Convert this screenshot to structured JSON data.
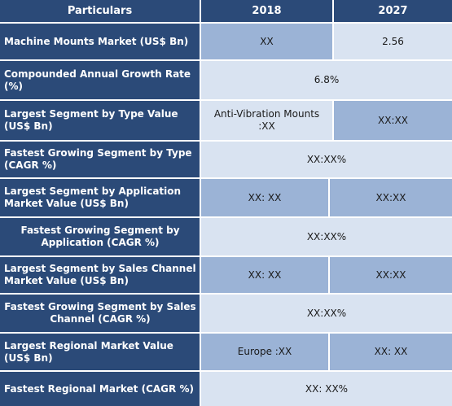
{
  "header": {
    "particulars": "Particulars",
    "year_2018": "2018",
    "year_2027": "2027"
  },
  "rows": [
    {
      "label": "Machine Mounts  Market (US$ Bn)",
      "v2018": "XX",
      "v2027": "2.56"
    },
    {
      "label": "Compounded Annual Growth Rate (%)",
      "value": "6.8%"
    },
    {
      "label": "Largest Segment by Type Value (US$ Bn)",
      "v2018": "Anti-Vibration Mounts :XX",
      "v2027": "XX:XX"
    },
    {
      "label": "Fastest Growing Segment by Type (CAGR %)",
      "value": "XX:XX%"
    },
    {
      "label": "Largest Segment by Application Market Value (US$ Bn)",
      "v2018": "XX: XX",
      "v2027": "XX:XX"
    },
    {
      "label": "Fastest Growing Segment by Application (CAGR %)",
      "value": "XX:XX%"
    },
    {
      "label": "Largest Segment by Sales Channel Market Value (US$ Bn)",
      "v2018": "XX: XX",
      "v2027": "XX:XX"
    },
    {
      "label": "Fastest Growing Segment by Sales Channel (CAGR %)",
      "value": "XX:XX%"
    },
    {
      "label": "Largest Regional Market Value (US$ Bn)",
      "v2018": "Europe :XX",
      "v2027": "XX: XX"
    },
    {
      "label": "Fastest Regional Market (CAGR %)",
      "value": "XX: XX%"
    }
  ]
}
